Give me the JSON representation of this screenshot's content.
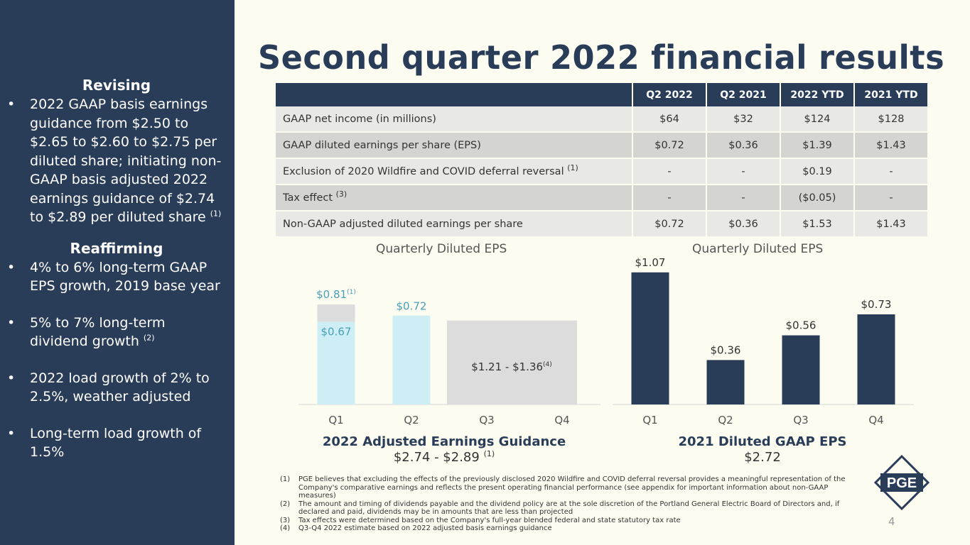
{
  "title": "Second quarter 2022 financial results",
  "sidebar": {
    "revising_head": "Revising",
    "revising_text": "2022 GAAP basis earnings guidance from $2.50 to $2.65 to $2.60 to $2.75 per diluted share; initiating non-GAAP basis adjusted 2022 earnings guidance of $2.74 to $2.89 per diluted share",
    "revising_sup": "(1)",
    "reaffirming_head": "Reaffirming",
    "items": [
      {
        "text": "4% to 6% long-term GAAP EPS growth, 2019 base year",
        "sup": ""
      },
      {
        "text": "5% to 7% long-term dividend growth",
        "sup": "(2)"
      },
      {
        "text": "2022 load growth of 2% to 2.5%, weather adjusted",
        "sup": ""
      },
      {
        "text": "Long-term load growth of 1.5%",
        "sup": ""
      }
    ]
  },
  "table": {
    "columns": [
      "Q2 2022",
      "Q2 2021",
      "2022 YTD",
      "2021 YTD"
    ],
    "rows": [
      {
        "label": "GAAP net income (in millions)",
        "sup": "",
        "values": [
          "$64",
          "$32",
          "$124",
          "$128"
        ]
      },
      {
        "label": "GAAP diluted earnings per share (EPS)",
        "sup": "",
        "values": [
          "$0.72",
          "$0.36",
          "$1.39",
          "$1.43"
        ]
      },
      {
        "label": "Exclusion of 2020 Wildfire and COVID deferral reversal",
        "sup": "(1)",
        "values": [
          "-",
          "-",
          "$0.19",
          "-"
        ]
      },
      {
        "label": "Tax effect",
        "sup": "(3)",
        "values": [
          "-",
          "-",
          "($0.05)",
          "-"
        ]
      },
      {
        "label": "Non-GAAP adjusted diluted earnings per share",
        "sup": "",
        "values": [
          "$0.72",
          "$0.36",
          "$1.53",
          "$1.43"
        ]
      }
    ]
  },
  "chart_data": [
    {
      "type": "bar",
      "title": "Quarterly Diluted EPS",
      "categories": [
        "Q1",
        "Q2",
        "Q3",
        "Q4"
      ],
      "series": [
        {
          "name": "",
          "values": [
            0.67,
            0.72,
            null,
            null
          ],
          "labels": [
            "$0.67",
            "$0.72",
            "",
            ""
          ]
        },
        {
          "name": "",
          "values": [
            0.14,
            null,
            null,
            null
          ],
          "labels": [
            "$0.81",
            "",
            "",
            ""
          ],
          "label_sup": "(1)"
        }
      ],
      "range_bar": {
        "categories": [
          "Q3",
          "Q4"
        ],
        "value": 0.68,
        "label": "$1.21 - $1.36",
        "label_sup": "(4)"
      },
      "footer_title": "2022 Adjusted Earnings Guidance",
      "footer_value": "$2.74 - $2.89",
      "footer_sup": "(1)",
      "ylim": [
        0,
        1.1
      ],
      "colors": {
        "q1_base": "#cdeef5",
        "q1_top": "#dcdcdc",
        "q2": "#cdeef5",
        "range": "#dcdcdc"
      }
    },
    {
      "type": "bar",
      "title": "Quarterly Diluted EPS",
      "categories": [
        "Q1",
        "Q2",
        "Q3",
        "Q4"
      ],
      "values": [
        1.07,
        0.36,
        0.56,
        0.73
      ],
      "labels": [
        "$1.07",
        "$0.36",
        "$0.56",
        "$0.73"
      ],
      "footer_title": "2021 Diluted GAAP EPS",
      "footer_value": "$2.72",
      "ylim": [
        0,
        1.1
      ],
      "color": "#2a3d58"
    }
  ],
  "footnotes": [
    {
      "n": "(1)",
      "text": "PGE believes that excluding the effects of the previously disclosed 2020 Wildfire and COVID deferral reversal provides a meaningful representation of the Company's comparative earnings and reflects the present operating financial performance (see appendix for important information about non-GAAP measures)"
    },
    {
      "n": "(2)",
      "text": "The amount and timing of dividends payable and the dividend policy are at the sole discretion of the Portland General Electric Board of Directors and, if declared and paid, dividends may be in amounts that are less than projected"
    },
    {
      "n": "(3)",
      "text": "Tax effects were determined based on the Company's full-year blended federal and state statutory tax rate"
    },
    {
      "n": "(4)",
      "text": "Q3-Q4 2022 estimate based on 2022 adjusted basis earnings guidance"
    }
  ],
  "logo_text": "PGE",
  "page_number": "4",
  "colors": {
    "navy": "#2a3d58",
    "background": "#fdfcf0",
    "light_blue": "#cdeef5",
    "gray": "#dcdcdc"
  }
}
